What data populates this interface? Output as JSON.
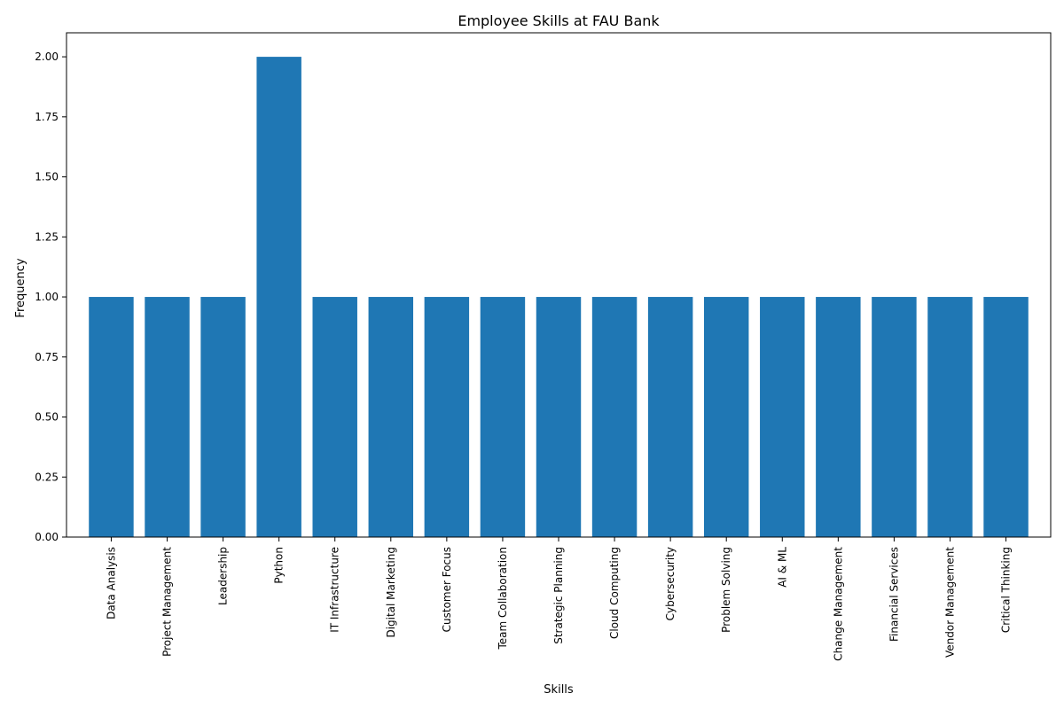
{
  "chart_data": {
    "type": "bar",
    "title": "Employee Skills at FAU Bank",
    "xlabel": "Skills",
    "ylabel": "Frequency",
    "categories": [
      "Data Analysis",
      "Project Management",
      "Leadership",
      "Python",
      "IT Infrastructure",
      "Digital Marketing",
      "Customer Focus",
      "Team Collaboration",
      "Strategic Planning",
      "Cloud Computing",
      "Cybersecurity",
      "Problem Solving",
      "AI & ML",
      "Change Management",
      "Financial Services",
      "Vendor Management",
      "Critical Thinking"
    ],
    "values": [
      1,
      1,
      1,
      2,
      1,
      1,
      1,
      1,
      1,
      1,
      1,
      1,
      1,
      1,
      1,
      1,
      1
    ],
    "ylim": [
      0,
      2.1
    ],
    "yticks": [
      "0.00",
      "0.25",
      "0.50",
      "0.75",
      "1.00",
      "1.25",
      "1.50",
      "1.75",
      "2.00"
    ],
    "bar_color": "#1f77b4",
    "grid": false,
    "legend": "none"
  }
}
